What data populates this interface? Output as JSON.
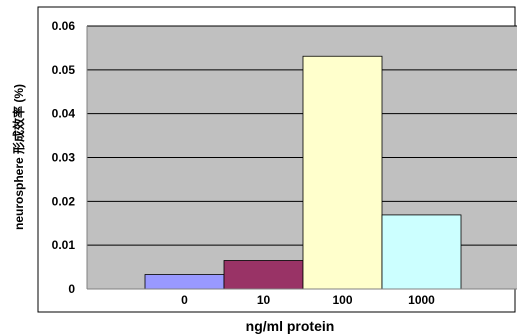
{
  "chart_data": {
    "type": "bar",
    "categories": [
      "0",
      "10",
      "100",
      "1000"
    ],
    "values": [
      0.0033,
      0.0065,
      0.0531,
      0.0169
    ],
    "xlabel": "ng/ml protein",
    "ylabel": "neurosphere 形成效率 (%)",
    "ylim": [
      0,
      0.06
    ],
    "yticks": [
      "0",
      "0.01",
      "0.02",
      "0.03",
      "0.04",
      "0.05",
      "0.06"
    ],
    "grid": true,
    "colors": {
      "bars": [
        "#9999ff",
        "#993366",
        "#ffffcc",
        "#ccffff"
      ],
      "plot_background": "#c0c0c0",
      "gridline": "#000000"
    }
  }
}
